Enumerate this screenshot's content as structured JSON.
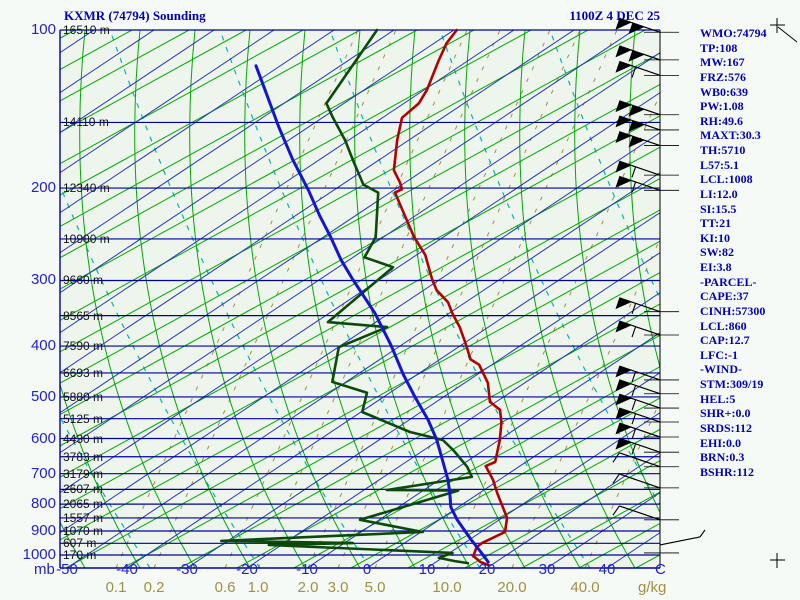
{
  "header": {
    "title": "KXMR (74794) Sounding",
    "datetime": "1100Z  4 DEC 25"
  },
  "units": {
    "pressure": "mb",
    "temperature": "C",
    "mixing_ratio": "g/kg"
  },
  "axes": {
    "pressure_labels": [
      100,
      200,
      300,
      400,
      500,
      600,
      700,
      800,
      900,
      1000
    ],
    "pressure_lines_mb": [
      100,
      150,
      200,
      250,
      300,
      350,
      400,
      450,
      500,
      550,
      600,
      650,
      700,
      750,
      800,
      850,
      900,
      950,
      1000
    ],
    "altitude_labels": [
      "16510 m",
      "14110 m",
      "12340 m",
      "10900 m",
      "9660 m",
      "8565 m",
      "7590 m",
      "6693 m",
      "5880 m",
      "5125 m",
      "4430 m",
      "3783 m",
      "3179 m",
      "2607 m",
      "2065 m",
      "1557 m",
      "1070 m",
      "607 m",
      "170 m"
    ],
    "temperature_ticks_c": [
      -50,
      -40,
      -30,
      -20,
      -10,
      0,
      10,
      20,
      30,
      40
    ],
    "mixing_ratio_ticks": [
      "0.1",
      "0.2",
      "0.6",
      "1.0",
      "2.0",
      "3.0",
      "5.0",
      "10.0",
      "20.0",
      "40.0"
    ],
    "mixing_ratio_anchors_x": [
      116,
      154,
      225,
      258,
      308,
      338,
      375,
      447,
      512,
      585
    ]
  },
  "stats_panel": [
    "WMO:74794",
    "TP:108",
    "MW:167",
    "FRZ:576",
    "WB0:639",
    "PW:1.08",
    "RH:49.6",
    "MAXT:30.3",
    "TH:5710",
    "L57:5.1",
    "LCL:1008",
    "LI:12.0",
    "SI:15.5",
    "TT:21",
    "KI:10",
    "SW:82",
    "EI:3.8",
    "-PARCEL-",
    "CAPE:37",
    "CINH:57300",
    "LCL:860",
    "CAP:12.7",
    "LFC:-1",
    "-WIND-",
    "STM:309/19",
    "HEL:5",
    "SHR+:0.0",
    "SRDS:112",
    "EHI:0.0",
    "BRN:0.3",
    "BSHR:112"
  ],
  "chart_data": {
    "type": "line",
    "subtype": "skew-t log-p sounding",
    "title": "KXMR (74794) Sounding 1100Z 4 DEC 25",
    "xlabel": "Temperature (C)",
    "ylabel": "Pressure (mb)",
    "x_range": [
      -50,
      40
    ],
    "y_range_mb": [
      1050,
      100
    ],
    "y_scale": "log",
    "series": [
      {
        "name": "temperature",
        "color": "#b40000",
        "points": [
          [
            100,
            -74.7
          ],
          [
            106,
            -74.2
          ],
          [
            115,
            -72.5
          ],
          [
            130,
            -69.7
          ],
          [
            138,
            -68.8
          ],
          [
            147,
            -69.2
          ],
          [
            162,
            -66.3
          ],
          [
            185,
            -61.8
          ],
          [
            195,
            -58.8
          ],
          [
            201,
            -57.3
          ],
          [
            204,
            -57.9
          ],
          [
            248,
            -47.3
          ],
          [
            268,
            -42.5
          ],
          [
            297,
            -37.5
          ],
          [
            313,
            -34.7
          ],
          [
            330,
            -30.8
          ],
          [
            346,
            -28.3
          ],
          [
            368,
            -24.7
          ],
          [
            393,
            -21.3
          ],
          [
            424,
            -17.5
          ],
          [
            434,
            -15.2
          ],
          [
            470,
            -10.7
          ],
          [
            511,
            -7.2
          ],
          [
            529,
            -4.2
          ],
          [
            560,
            -1.8
          ],
          [
            604,
            0.8
          ],
          [
            665,
            3.7
          ],
          [
            677,
            2.8
          ],
          [
            719,
            6.3
          ],
          [
            762,
            9.2
          ],
          [
            850,
            15.0
          ],
          [
            904,
            17.0
          ],
          [
            949,
            15.0
          ],
          [
            966,
            14.8
          ],
          [
            1004,
            15.7
          ],
          [
            1031,
            17.9
          ],
          [
            1045,
            19.7
          ]
        ]
      },
      {
        "name": "dewpoint",
        "color": "#0b4a0b",
        "points": [
          [
            100,
            -88
          ],
          [
            138,
            -84.2
          ],
          [
            147,
            -80.7
          ],
          [
            162,
            -75
          ],
          [
            178,
            -70
          ],
          [
            197,
            -64.5
          ],
          [
            204,
            -60.7
          ],
          [
            248,
            -53.7
          ],
          [
            271,
            -52.2
          ],
          [
            283,
            -45.8
          ],
          [
            360,
            -47.5
          ],
          [
            368,
            -36.8
          ],
          [
            402,
            -41.5
          ],
          [
            468,
            -36.8
          ],
          [
            491,
            -29.2
          ],
          [
            534,
            -26.8
          ],
          [
            583,
            -15.5
          ],
          [
            604,
            -8.7
          ],
          [
            631,
            -5.3
          ],
          [
            679,
            -0.2
          ],
          [
            710,
            2.3
          ],
          [
            752,
            -9.7
          ],
          [
            754,
            2.3
          ],
          [
            857,
            -9.2
          ],
          [
            904,
            3.3
          ],
          [
            940,
            -28.8
          ],
          [
            949,
            -6.5
          ],
          [
            957,
            -20.2
          ],
          [
            991,
            11.7
          ],
          [
            1013,
            10.3
          ],
          [
            1027,
            13.5
          ],
          [
            1036,
            16.0
          ]
        ]
      },
      {
        "name": "parcel",
        "color": "#1515cc",
        "points": [
          [
            117,
            -102.2
          ],
          [
            130,
            -96.7
          ],
          [
            153,
            -88.2
          ],
          [
            177,
            -80.3
          ],
          [
            202,
            -72.7
          ],
          [
            225,
            -66.8
          ],
          [
            248,
            -61.2
          ],
          [
            274,
            -55.7
          ],
          [
            297,
            -50.8
          ],
          [
            346,
            -41.2
          ],
          [
            398,
            -33.2
          ],
          [
            453,
            -26.2
          ],
          [
            500,
            -20.5
          ],
          [
            553,
            -14.5
          ],
          [
            604,
            -9.7
          ],
          [
            665,
            -5.0
          ],
          [
            719,
            -1.2
          ],
          [
            762,
            1.3
          ],
          [
            810,
            3.8
          ],
          [
            857,
            7.0
          ],
          [
            936,
            12.7
          ],
          [
            987,
            16.3
          ],
          [
            1031,
            19.2
          ]
        ]
      }
    ],
    "winds": [
      {
        "p": 101,
        "style": "pennants2"
      },
      {
        "p": 114,
        "style": "pennants2"
      },
      {
        "p": 122,
        "style": "pennants1"
      },
      {
        "p": 145,
        "style": "pennants2"
      },
      {
        "p": 155,
        "style": "pennants2"
      },
      {
        "p": 166,
        "style": "pennants2"
      },
      {
        "p": 189,
        "style": "pennants1"
      },
      {
        "p": 202,
        "style": "pennants1"
      },
      {
        "p": 344,
        "style": "pennants1"
      },
      {
        "p": 381,
        "style": "pennants1"
      },
      {
        "p": 464,
        "style": "pennants1"
      },
      {
        "p": 493,
        "style": "pennants1"
      },
      {
        "p": 525,
        "style": "pennants1"
      },
      {
        "p": 558,
        "style": "pennants1"
      },
      {
        "p": 596,
        "style": "pennants1"
      },
      {
        "p": 637,
        "style": "pennants1"
      },
      {
        "p": 679,
        "style": "barb"
      },
      {
        "p": 745,
        "style": "barb"
      },
      {
        "p": 857,
        "style": "barb"
      },
      {
        "p": 991,
        "style": "light-se"
      }
    ],
    "grid": {
      "isotherm_color": "#2233bb",
      "dry_adiabat_color": "#00a800",
      "moist_adiabat_color": "#00b4b4",
      "mixing_ratio_color": "#a09040",
      "pressure_line_color": "#0000a0",
      "legend": "grid on"
    }
  },
  "colors": {
    "background": "#f6faf6",
    "plot_bg": "#edf5ed",
    "text_blue": "#0000bb",
    "curve_red": "#b40000",
    "curve_green": "#0b4a0b",
    "curve_blue": "#1515cc"
  }
}
